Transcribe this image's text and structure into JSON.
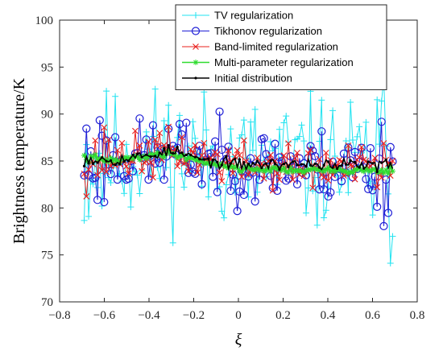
{
  "chart_data": {
    "type": "line",
    "xlabel": "ξ",
    "ylabel": "Brightness temperature/K",
    "xlim": [
      -0.8,
      0.8
    ],
    "ylim": [
      70,
      100
    ],
    "xticks": [
      "−0.8",
      "−0.6",
      "−0.4",
      "−0.2",
      "0",
      "0.2",
      "0.4",
      "0.6",
      "0.8"
    ],
    "yticks": [
      "70",
      "75",
      "80",
      "85",
      "90",
      "95",
      "100"
    ],
    "legend_position": "top-right",
    "x_range": [
      -0.69,
      0.69
    ],
    "n_points": 140,
    "series": [
      {
        "name": "TV regularization",
        "color": "#22e3f0",
        "marker": "plus",
        "mean": [
          [
            -0.69,
            85.3
          ],
          [
            -0.45,
            85.6
          ],
          [
            -0.3,
            85.9
          ],
          [
            0.0,
            84.8
          ],
          [
            0.3,
            84.7
          ],
          [
            0.69,
            84.6
          ]
        ],
        "spread": 3.5,
        "seed": 11
      },
      {
        "name": "Tikhonov regularization",
        "color": "#1f1fd6",
        "marker": "circle",
        "mean": [
          [
            -0.69,
            85.3
          ],
          [
            -0.45,
            85.5
          ],
          [
            -0.3,
            85.9
          ],
          [
            0.0,
            84.6
          ],
          [
            0.3,
            84.4
          ],
          [
            0.69,
            84.4
          ]
        ],
        "spread": 1.9,
        "seed": 23
      },
      {
        "name": "Band-limited regularization",
        "color": "#e8201e",
        "marker": "cross",
        "mean": [
          [
            -0.69,
            85.3
          ],
          [
            -0.45,
            85.5
          ],
          [
            -0.3,
            86.0
          ],
          [
            0.0,
            84.6
          ],
          [
            0.3,
            84.3
          ],
          [
            0.69,
            84.2
          ]
        ],
        "spread": 1.2,
        "seed": 37
      },
      {
        "name": "Multi-parameter regularization",
        "color": "#2fdc2f",
        "marker": "asterisk",
        "mean": [
          [
            -0.69,
            85.3
          ],
          [
            -0.55,
            85.0
          ],
          [
            -0.4,
            85.6
          ],
          [
            -0.3,
            85.8
          ],
          [
            -0.15,
            84.9
          ],
          [
            0.0,
            84.2
          ],
          [
            0.3,
            84.0
          ],
          [
            0.69,
            84.0
          ]
        ],
        "spread": 0.15,
        "seed": 41
      },
      {
        "name": "Initial distribution",
        "color": "#000000",
        "marker": "dot",
        "mean": [
          [
            -0.69,
            85.4
          ],
          [
            -0.55,
            85.1
          ],
          [
            -0.4,
            85.6
          ],
          [
            -0.3,
            86.1
          ],
          [
            -0.15,
            85.0
          ],
          [
            0.0,
            84.6
          ],
          [
            0.3,
            84.7
          ],
          [
            0.69,
            84.5
          ]
        ],
        "spread": 0.3,
        "seed": 53
      }
    ]
  }
}
